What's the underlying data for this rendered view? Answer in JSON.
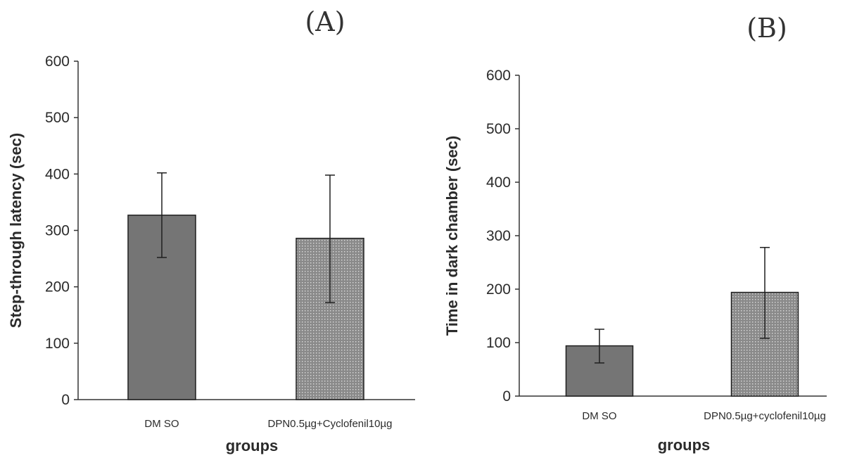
{
  "chart_data": [
    {
      "type": "bar",
      "panel_label": "(A)",
      "categories": [
        "DMSO",
        "DPN0.5µg+Cyclofenil10µg"
      ],
      "category_labels": [
        "DM SO",
        "DPN0.5µg+Cyclofenil10µg"
      ],
      "values": [
        327,
        286
      ],
      "error_high": [
        402,
        398
      ],
      "error_low": [
        252,
        172
      ],
      "ylim": [
        0,
        600
      ],
      "yticks": [
        0,
        100,
        200,
        300,
        400,
        500,
        600
      ],
      "ylabel": "Step-through latency (sec)",
      "xlabel": "groups",
      "bar_styles": [
        "solid",
        "dotted"
      ],
      "grid": false
    },
    {
      "type": "bar",
      "panel_label": "(B)",
      "categories": [
        "DMSO",
        "DPN0.5µg+cyclofenil10µg"
      ],
      "category_labels": [
        "DM SO",
        "DPN0.5µg+cyclofenil10µg"
      ],
      "values": [
        94,
        194
      ],
      "error_high": [
        125,
        278
      ],
      "error_low": [
        62,
        108
      ],
      "ylim": [
        0,
        600
      ],
      "yticks": [
        0,
        100,
        200,
        300,
        400,
        500,
        600
      ],
      "ylabel": "Time in dark chamber (sec)",
      "xlabel": "groups",
      "bar_styles": [
        "solid",
        "dotted"
      ],
      "grid": false
    }
  ],
  "colors": {
    "solid_bar": "#757575",
    "dotted_bar_bg": "#8a8a8a",
    "dotted_bar_dot": "#dcdcdc",
    "bar_stroke": "#1f1f1f",
    "axis": "#333333"
  }
}
